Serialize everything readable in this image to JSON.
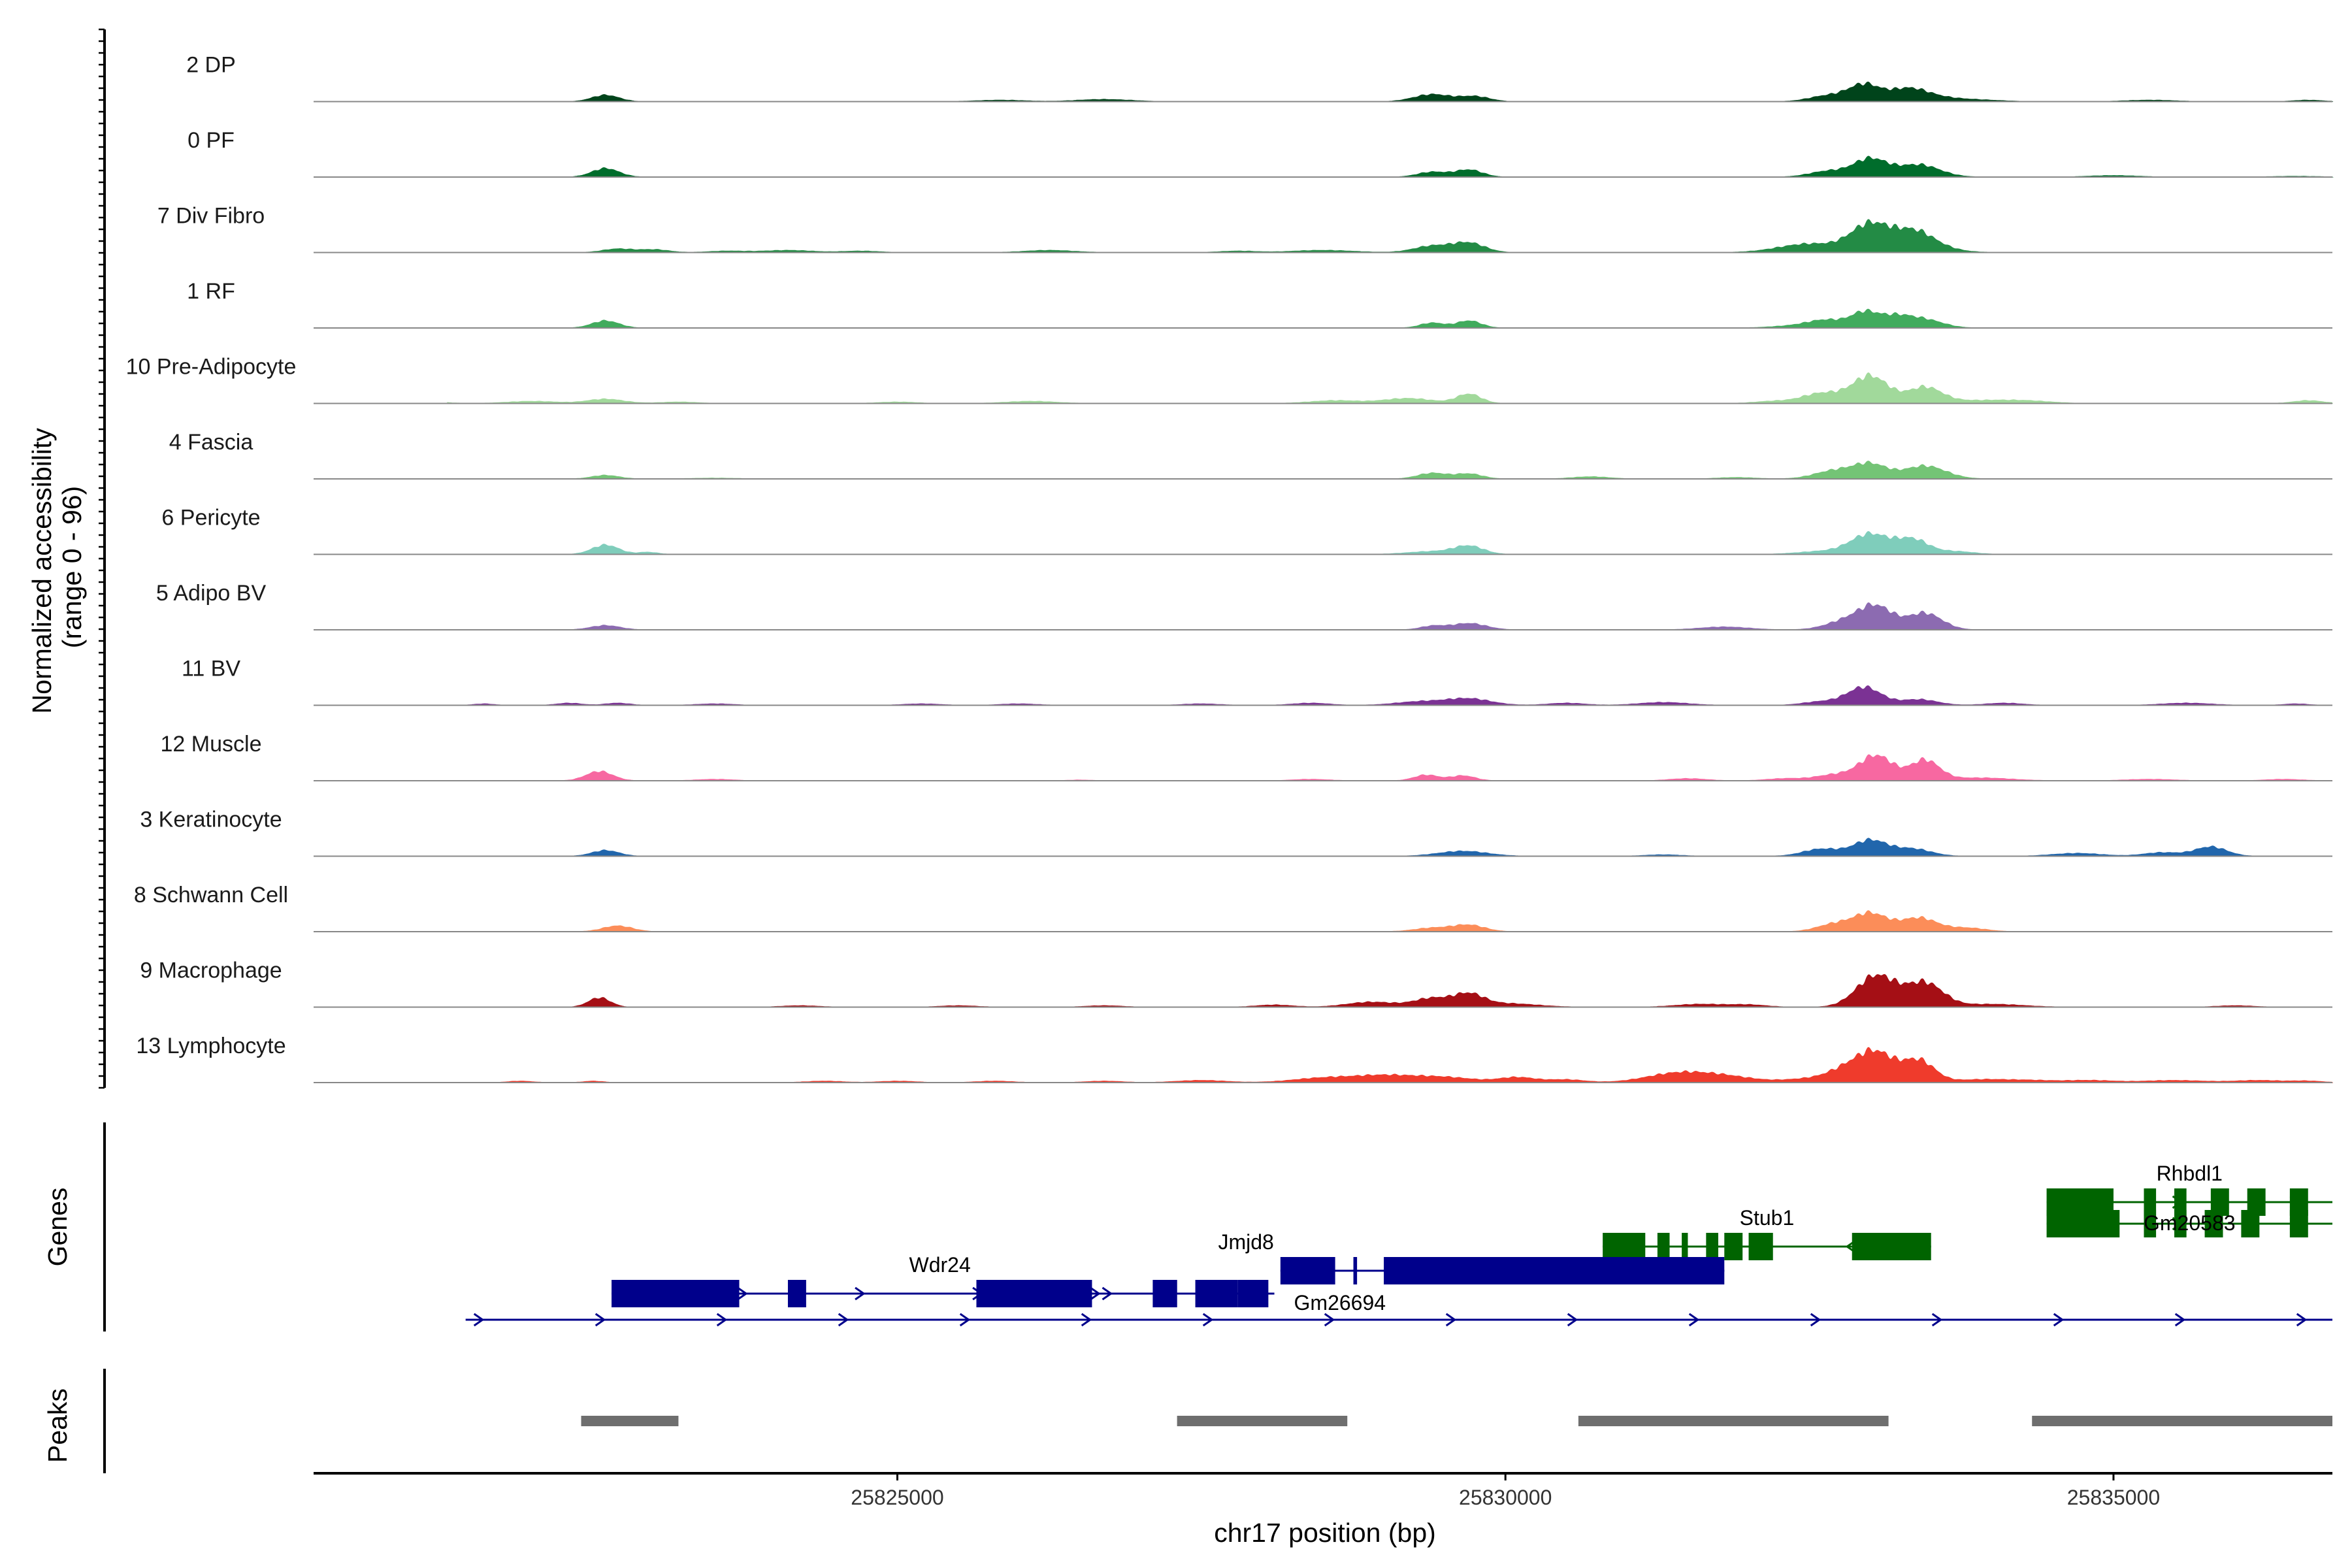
{
  "chart_data": {
    "type": "area",
    "ylabel": "Normalized accessibility\n(range 0 - 96)",
    "xlabel": "chr17 position (bp)",
    "xlim": [
      25820200,
      25836800
    ],
    "x_ticks": [
      25825000,
      25830000,
      25835000
    ],
    "x_tick_labels": [
      "25825000",
      "25830000",
      "25835000"
    ],
    "y_range": [
      0,
      96
    ],
    "tracks": [
      {
        "label": "2 DP",
        "color": "#00441b",
        "peaks": [
          [
            25822600,
            9,
            110
          ],
          [
            25825850,
            2,
            200
          ],
          [
            25826700,
            3,
            220
          ],
          [
            25829400,
            10,
            150
          ],
          [
            25829750,
            7,
            120
          ],
          [
            25832650,
            8,
            150
          ],
          [
            25832950,
            23,
            130
          ],
          [
            25833300,
            15,
            150
          ],
          [
            25833500,
            6,
            200
          ],
          [
            25833900,
            2,
            200
          ],
          [
            25835300,
            2,
            200
          ],
          [
            25836600,
            2,
            120
          ]
        ]
      },
      {
        "label": "0 PF",
        "color": "#006d2c",
        "peaks": [
          [
            25822600,
            12,
            110
          ],
          [
            25829400,
            7,
            120
          ],
          [
            25829700,
            10,
            110
          ],
          [
            25832650,
            8,
            150
          ],
          [
            25833000,
            25,
            140
          ],
          [
            25833400,
            17,
            170
          ],
          [
            25835000,
            2,
            200
          ],
          [
            25836500,
            1,
            200
          ]
        ]
      },
      {
        "label": "7 Div Fibro",
        "color": "#238b45",
        "peaks": [
          [
            25822700,
            5,
            120
          ],
          [
            25823000,
            4,
            120
          ],
          [
            25823600,
            2,
            150
          ],
          [
            25824100,
            3,
            200
          ],
          [
            25824700,
            2,
            150
          ],
          [
            25826250,
            3,
            200
          ],
          [
            25827800,
            2,
            150
          ],
          [
            25828500,
            3,
            250
          ],
          [
            25829400,
            9,
            150
          ],
          [
            25829700,
            13,
            130
          ],
          [
            25832500,
            12,
            250
          ],
          [
            25833000,
            38,
            160
          ],
          [
            25833350,
            25,
            160
          ],
          [
            25833500,
            6,
            200
          ]
        ]
      },
      {
        "label": "1 RF",
        "color": "#41ab5d",
        "peaks": [
          [
            25822600,
            10,
            110
          ],
          [
            25829400,
            7,
            100
          ],
          [
            25829700,
            10,
            100
          ],
          [
            25832400,
            3,
            200
          ],
          [
            25832650,
            10,
            150
          ],
          [
            25832950,
            20,
            110
          ],
          [
            25833200,
            15,
            130
          ],
          [
            25833450,
            11,
            150
          ]
        ]
      },
      {
        "label": "10 Pre-Adipocyte",
        "color": "#a1d99b",
        "peaks": [
          [
            25821100,
            3,
            150
          ],
          [
            25822000,
            3,
            200
          ],
          [
            25822600,
            6,
            150
          ],
          [
            25823200,
            2,
            150
          ],
          [
            25825000,
            2,
            150
          ],
          [
            25826100,
            3,
            200
          ],
          [
            25828600,
            4,
            200
          ],
          [
            25829200,
            7,
            200
          ],
          [
            25829700,
            13,
            100
          ],
          [
            25832200,
            3,
            150
          ],
          [
            25832600,
            14,
            160
          ],
          [
            25833000,
            38,
            150
          ],
          [
            25833450,
            22,
            140
          ],
          [
            25833900,
            4,
            250
          ],
          [
            25834300,
            3,
            200
          ],
          [
            25836600,
            4,
            120
          ]
        ]
      },
      {
        "label": "4 Fascia",
        "color": "#74c476",
        "peaks": [
          [
            25822600,
            5,
            110
          ],
          [
            25823500,
            1,
            200
          ],
          [
            25829400,
            8,
            120
          ],
          [
            25829700,
            7,
            110
          ],
          [
            25830700,
            3,
            150
          ],
          [
            25831900,
            2,
            150
          ],
          [
            25832700,
            11,
            160
          ],
          [
            25833000,
            20,
            140
          ],
          [
            25833450,
            18,
            170
          ]
        ]
      },
      {
        "label": "6 Pericyte",
        "color": "#7fcdbb",
        "peaks": [
          [
            25822600,
            13,
            110
          ],
          [
            25822950,
            3,
            80
          ],
          [
            25829400,
            4,
            200
          ],
          [
            25829700,
            11,
            120
          ],
          [
            25832600,
            4,
            200
          ],
          [
            25833000,
            28,
            160
          ],
          [
            25833350,
            20,
            130
          ],
          [
            25833700,
            4,
            150
          ]
        ]
      },
      {
        "label": "5 Adipo BV",
        "color": "#8c6bb1",
        "peaks": [
          [
            25822600,
            6,
            120
          ],
          [
            25829400,
            5,
            100
          ],
          [
            25829700,
            9,
            140
          ],
          [
            25831800,
            4,
            200
          ],
          [
            25832800,
            12,
            160
          ],
          [
            25833050,
            31,
            140
          ],
          [
            25833450,
            23,
            140
          ]
        ]
      },
      {
        "label": "11 BV",
        "color": "#7b3294",
        "peaks": [
          [
            25821600,
            2,
            80
          ],
          [
            25822300,
            3,
            100
          ],
          [
            25822700,
            3,
            100
          ],
          [
            25823500,
            2,
            150
          ],
          [
            25825200,
            2,
            150
          ],
          [
            25826000,
            2,
            150
          ],
          [
            25827500,
            2,
            150
          ],
          [
            25828400,
            3,
            150
          ],
          [
            25829300,
            5,
            200
          ],
          [
            25829700,
            9,
            180
          ],
          [
            25830500,
            3,
            150
          ],
          [
            25831300,
            4,
            200
          ],
          [
            25832600,
            5,
            150
          ],
          [
            25832950,
            25,
            140
          ],
          [
            25833400,
            8,
            150
          ],
          [
            25834100,
            3,
            150
          ],
          [
            25835600,
            3,
            200
          ],
          [
            25836500,
            2,
            100
          ]
        ]
      },
      {
        "label": "12 Muscle",
        "color": "#f768a1",
        "peaks": [
          [
            25820800,
            2,
            100
          ],
          [
            25822550,
            13,
            110
          ],
          [
            25823500,
            2,
            150
          ],
          [
            25826500,
            1,
            100
          ],
          [
            25828400,
            2,
            150
          ],
          [
            25829350,
            8,
            100
          ],
          [
            25829650,
            7,
            100
          ],
          [
            25831500,
            3,
            150
          ],
          [
            25832300,
            3,
            150
          ],
          [
            25832700,
            8,
            150
          ],
          [
            25833050,
            35,
            140
          ],
          [
            25833450,
            28,
            120
          ],
          [
            25833900,
            4,
            250
          ],
          [
            25835300,
            2,
            200
          ],
          [
            25836400,
            2,
            150
          ]
        ]
      },
      {
        "label": "3 Keratinocyte",
        "color": "#2166ac",
        "peaks": [
          [
            25822600,
            8,
            110
          ],
          [
            25829650,
            7,
            200
          ],
          [
            25831300,
            2,
            150
          ],
          [
            25832600,
            10,
            150
          ],
          [
            25833000,
            22,
            140
          ],
          [
            25833350,
            10,
            150
          ],
          [
            25834700,
            4,
            200
          ],
          [
            25835400,
            5,
            150
          ],
          [
            25835800,
            13,
            130
          ]
        ]
      },
      {
        "label": "8 Schwann Cell",
        "color": "#fc8d59",
        "peaks": [
          [
            25822700,
            8,
            120
          ],
          [
            25829400,
            5,
            150
          ],
          [
            25829700,
            9,
            130
          ],
          [
            25832700,
            10,
            140
          ],
          [
            25833000,
            25,
            140
          ],
          [
            25833400,
            19,
            150
          ],
          [
            25833800,
            5,
            150
          ]
        ]
      },
      {
        "label": "9 Macrophage",
        "color": "#a50f15",
        "peaks": [
          [
            25821000,
            2,
            100
          ],
          [
            25822550,
            13,
            90
          ],
          [
            25824200,
            2,
            150
          ],
          [
            25825500,
            2,
            150
          ],
          [
            25826700,
            2,
            150
          ],
          [
            25828100,
            3,
            150
          ],
          [
            25828900,
            7,
            200
          ],
          [
            25829400,
            12,
            150
          ],
          [
            25829700,
            16,
            120
          ],
          [
            25830000,
            5,
            250
          ],
          [
            25831600,
            4,
            200
          ],
          [
            25832000,
            3,
            150
          ],
          [
            25833050,
            44,
            160
          ],
          [
            25833450,
            33,
            150
          ],
          [
            25834000,
            4,
            250
          ],
          [
            25836000,
            2,
            150
          ]
        ]
      },
      {
        "label": "13 Lymphocyte",
        "color": "#ef3b2c",
        "peaks": [
          [
            25821900,
            2,
            100
          ],
          [
            25822500,
            2,
            80
          ],
          [
            25824400,
            2,
            150
          ],
          [
            25825000,
            2,
            150
          ],
          [
            25825800,
            2,
            150
          ],
          [
            25826700,
            2,
            150
          ],
          [
            25827500,
            3,
            200
          ],
          [
            25828500,
            6,
            250
          ],
          [
            25829000,
            9,
            250
          ],
          [
            25829500,
            7,
            250
          ],
          [
            25830100,
            7,
            150
          ],
          [
            25830500,
            4,
            150
          ],
          [
            25831400,
            12,
            250
          ],
          [
            25831800,
            8,
            250
          ],
          [
            25832500,
            5,
            200
          ],
          [
            25832800,
            16,
            150
          ],
          [
            25833050,
            40,
            150
          ],
          [
            25833400,
            30,
            130
          ],
          [
            25833900,
            4,
            200
          ],
          [
            25834300,
            3,
            200
          ],
          [
            25834800,
            3,
            200
          ],
          [
            25835500,
            3,
            250
          ],
          [
            25836200,
            3,
            200
          ],
          [
            25836600,
            2,
            120
          ]
        ]
      }
    ],
    "genes_track_label": "Genes",
    "genes": [
      {
        "name": "Wdr24",
        "strand": "+",
        "color": "#00008b",
        "start": 25822650,
        "end": 25828050,
        "exons": [
          [
            25822650,
            25823700
          ],
          [
            25824100,
            25824250
          ],
          [
            25825650,
            25826600
          ],
          [
            25827200,
            25827300
          ],
          [
            25827450,
            25827750
          ],
          [
            25827800,
            25828050
          ]
        ]
      },
      {
        "name": "Gm26694",
        "strand": "+",
        "color": "#00008b",
        "start": 25825650,
        "end": 25828100,
        "exons": [
          [
            25825650,
            25826600
          ],
          [
            25827100,
            25827300
          ],
          [
            25827500,
            25827800
          ],
          [
            25828000,
            25828050
          ]
        ]
      },
      {
        "name": "Jmjd8",
        "strand": "+",
        "color": "#00008b",
        "start": 25828150,
        "end": 25831800,
        "exons": [
          [
            25828150,
            25828600
          ],
          [
            25828750,
            25828780
          ],
          [
            25829000,
            25831800
          ]
        ]
      },
      {
        "name": "Stub1",
        "strand": "-",
        "color": "#006400",
        "start": 25830800,
        "end": 25833500,
        "exons": [
          [
            25830800,
            25831150
          ],
          [
            25831250,
            25831350
          ],
          [
            25831450,
            25831500
          ],
          [
            25831650,
            25831750
          ],
          [
            25831800,
            25831950
          ],
          [
            25832000,
            25832200
          ],
          [
            25832850,
            25833500
          ]
        ]
      },
      {
        "name": "Rhbdl1",
        "strand": "+",
        "color": "#006400",
        "start": 25834450,
        "end": 25836800,
        "exons": [
          [
            25834450,
            25835000
          ],
          [
            25835250,
            25835350
          ],
          [
            25835500,
            25835600
          ],
          [
            25835800,
            25835950
          ],
          [
            25836100,
            25836250
          ],
          [
            25836450,
            25836600
          ]
        ]
      },
      {
        "name": "Gm20583",
        "strand": "+",
        "color": "#006400",
        "start": 25834450,
        "end": 25836800,
        "exons": [
          [
            25834450,
            25835050
          ],
          [
            25835250,
            25835350
          ],
          [
            25835500,
            25835600
          ],
          [
            25835750,
            25835900
          ],
          [
            25836050,
            25836200
          ],
          [
            25836450,
            25836600
          ]
        ]
      },
      {
        "name": "",
        "strand": "+",
        "color": "#00008b",
        "start": 25821450,
        "end": 25836800,
        "exons": []
      }
    ],
    "peaks_track_label": "Peaks",
    "peak_regions": [
      [
        25822400,
        25823200
      ],
      [
        25827300,
        25828700
      ],
      [
        25830600,
        25833150
      ],
      [
        25834330,
        25836800
      ]
    ],
    "peak_color": "#6e6e6e"
  }
}
